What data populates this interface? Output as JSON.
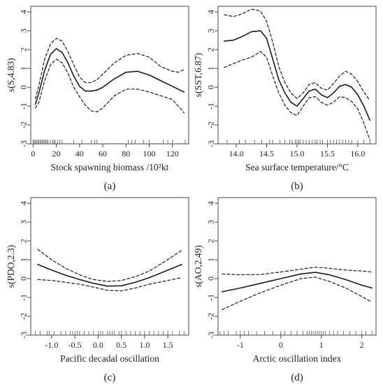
{
  "chart_data": [
    {
      "type": "line",
      "panel_label": "(a)",
      "xlabel": "Stock spawning biomass /10²kt",
      "ylabel": "s(S,4.83)",
      "xlim": [
        -2,
        134
      ],
      "ylim": [
        -3,
        4.3
      ],
      "xticks": [
        0,
        20,
        40,
        60,
        80,
        100,
        120
      ],
      "yticks": [
        -3,
        -2,
        -1,
        0,
        1,
        2,
        3,
        4
      ],
      "series": [
        {
          "role": "estimate",
          "style": "solid",
          "x": [
            2,
            5,
            10,
            15,
            20,
            25,
            30,
            35,
            40,
            45,
            50,
            55,
            60,
            70,
            80,
            90,
            100,
            110,
            120,
            130
          ],
          "y": [
            -0.9,
            -0.3,
            0.9,
            1.75,
            2.05,
            1.85,
            1.3,
            0.6,
            0.05,
            -0.2,
            -0.2,
            -0.15,
            0.0,
            0.45,
            0.8,
            0.85,
            0.65,
            0.35,
            0.05,
            -0.25
          ]
        },
        {
          "role": "upper",
          "style": "dashed",
          "x": [
            2,
            5,
            10,
            15,
            20,
            25,
            30,
            35,
            40,
            45,
            50,
            55,
            60,
            70,
            80,
            90,
            100,
            110,
            120,
            125,
            130
          ],
          "y": [
            -0.6,
            0.1,
            1.5,
            2.3,
            2.6,
            2.45,
            1.9,
            1.2,
            0.55,
            0.25,
            0.25,
            0.4,
            0.7,
            1.3,
            1.7,
            1.8,
            1.6,
            1.1,
            0.85,
            0.8,
            0.95
          ]
        },
        {
          "role": "lower",
          "style": "dashed",
          "x": [
            2,
            5,
            10,
            15,
            20,
            25,
            30,
            35,
            40,
            45,
            50,
            55,
            60,
            70,
            80,
            90,
            100,
            110,
            120,
            130
          ],
          "y": [
            -1.1,
            -0.8,
            0.35,
            1.2,
            1.5,
            1.3,
            0.75,
            0.0,
            -0.5,
            -0.95,
            -1.25,
            -1.3,
            -1.1,
            -0.45,
            -0.1,
            -0.1,
            -0.25,
            -0.45,
            -0.65,
            -1.35
          ]
        }
      ],
      "rug": [
        0,
        1,
        2,
        3,
        4,
        5,
        6,
        7,
        8,
        9,
        10,
        11,
        12,
        13,
        15,
        17,
        18,
        19,
        21,
        23,
        25,
        35,
        42,
        50,
        53,
        55,
        82,
        85,
        88,
        95,
        100,
        112,
        116,
        120,
        131
      ]
    },
    {
      "type": "line",
      "panel_label": "(b)",
      "xlabel": "Sea surface temperature/°C",
      "ylabel": "s(SST,6.87)",
      "xlim": [
        13.7,
        16.3
      ],
      "ylim": [
        -3,
        4.3
      ],
      "xticks": [
        14.0,
        14.5,
        15.0,
        15.5,
        16.0
      ],
      "xtick_labels": [
        "14.0",
        "14.5",
        "15.0",
        "15.5",
        "16.0"
      ],
      "yticks": [
        -3,
        -2,
        -1,
        0,
        1,
        2,
        3,
        4
      ],
      "series": [
        {
          "role": "estimate",
          "style": "solid",
          "x": [
            13.8,
            13.95,
            14.1,
            14.25,
            14.4,
            14.5,
            14.6,
            14.7,
            14.8,
            14.9,
            15.0,
            15.1,
            15.2,
            15.3,
            15.4,
            15.5,
            15.6,
            15.7,
            15.8,
            15.9,
            16.0,
            16.1,
            16.2
          ],
          "y": [
            2.45,
            2.5,
            2.7,
            2.95,
            3.0,
            2.6,
            1.5,
            0.4,
            -0.3,
            -0.8,
            -1.0,
            -0.6,
            -0.2,
            -0.1,
            -0.4,
            -0.55,
            -0.3,
            0.05,
            0.15,
            0.0,
            -0.4,
            -1.0,
            -1.75
          ]
        },
        {
          "role": "upper",
          "style": "dashed",
          "x": [
            13.8,
            13.95,
            14.1,
            14.25,
            14.4,
            14.5,
            14.6,
            14.7,
            14.8,
            14.9,
            15.0,
            15.1,
            15.2,
            15.3,
            15.4,
            15.5,
            15.6,
            15.7,
            15.8,
            15.9,
            16.0,
            16.1,
            16.2
          ],
          "y": [
            3.85,
            3.75,
            3.9,
            4.15,
            4.05,
            3.5,
            2.4,
            1.1,
            0.25,
            -0.3,
            -0.6,
            -0.3,
            0.15,
            0.25,
            -0.05,
            -0.15,
            0.2,
            0.6,
            0.85,
            0.7,
            0.3,
            -0.25,
            -0.7
          ]
        },
        {
          "role": "lower",
          "style": "dashed",
          "x": [
            13.8,
            13.95,
            14.1,
            14.25,
            14.4,
            14.5,
            14.6,
            14.7,
            14.8,
            14.9,
            15.0,
            15.1,
            15.2,
            15.3,
            15.4,
            15.5,
            15.6,
            15.7,
            15.8,
            15.9,
            16.0,
            16.1,
            16.2
          ],
          "y": [
            1.05,
            1.25,
            1.45,
            1.6,
            1.9,
            1.6,
            0.6,
            -0.3,
            -0.95,
            -1.35,
            -1.5,
            -1.0,
            -0.55,
            -0.5,
            -0.8,
            -0.95,
            -0.8,
            -0.5,
            -0.55,
            -0.75,
            -1.15,
            -1.9,
            -2.8
          ]
        }
      ],
      "rug": [
        13.85,
        14.05,
        14.15,
        14.3,
        14.42,
        14.55,
        14.6,
        14.72,
        14.8,
        14.88,
        14.92,
        14.97,
        15.0,
        15.03,
        15.05,
        15.1,
        15.15,
        15.2,
        15.25,
        15.3,
        15.33,
        15.38,
        15.42,
        15.5,
        15.55,
        15.6,
        15.65,
        15.7,
        15.75,
        15.8,
        15.85,
        15.9,
        16.0,
        16.1,
        16.2
      ]
    },
    {
      "type": "line",
      "panel_label": "(c)",
      "xlabel": "Pacific decadal oscillation",
      "ylabel": "s(PDO,2.3)",
      "xlim": [
        -1.45,
        1.95
      ],
      "ylim": [
        -3,
        4.3
      ],
      "xticks": [
        -1.0,
        -0.5,
        0.0,
        0.5,
        1.0,
        1.5
      ],
      "xtick_labels": [
        "-1.0",
        "-0.5",
        "0.0",
        "0.5",
        "1.0",
        "1.5"
      ],
      "yticks": [
        -3,
        -2,
        -1,
        0,
        1,
        2,
        3,
        4
      ],
      "series": [
        {
          "role": "estimate",
          "style": "solid",
          "x": [
            -1.3,
            -1.0,
            -0.7,
            -0.4,
            -0.1,
            0.2,
            0.5,
            0.8,
            1.1,
            1.4,
            1.8
          ],
          "y": [
            0.75,
            0.45,
            0.18,
            -0.05,
            -0.25,
            -0.4,
            -0.38,
            -0.2,
            0.05,
            0.35,
            0.75
          ]
        },
        {
          "role": "upper",
          "style": "dashed",
          "x": [
            -1.3,
            -1.0,
            -0.7,
            -0.4,
            -0.1,
            0.2,
            0.5,
            0.8,
            1.1,
            1.4,
            1.8
          ],
          "y": [
            1.55,
            1.0,
            0.55,
            0.2,
            -0.05,
            -0.15,
            -0.1,
            0.1,
            0.4,
            0.85,
            1.5
          ]
        },
        {
          "role": "lower",
          "style": "dashed",
          "x": [
            -1.3,
            -1.0,
            -0.7,
            -0.4,
            -0.1,
            0.2,
            0.5,
            0.8,
            1.1,
            1.4,
            1.8
          ],
          "y": [
            -0.05,
            -0.1,
            -0.2,
            -0.3,
            -0.45,
            -0.62,
            -0.65,
            -0.5,
            -0.3,
            -0.15,
            0.05
          ]
        }
      ],
      "rug": [
        -1.35,
        -1.25,
        -1.1,
        -1.05,
        -0.95,
        -0.8,
        -0.7,
        -0.6,
        -0.55,
        -0.5,
        -0.45,
        -0.4,
        -0.3,
        -0.2,
        -0.1,
        0.0,
        0.05,
        0.1,
        0.2,
        0.25,
        0.3,
        0.35,
        0.45,
        0.5,
        0.6,
        0.7,
        0.8,
        0.9,
        1.0,
        1.1,
        1.2,
        1.3,
        1.4,
        1.5,
        1.6,
        1.75,
        1.85
      ]
    },
    {
      "type": "line",
      "panel_label": "(d)",
      "xlabel": "Arctic oscillation index",
      "ylabel": "s(AO,2.49)",
      "xlim": [
        -1.55,
        2.35
      ],
      "ylim": [
        -3,
        4.3
      ],
      "xticks": [
        -1,
        0,
        1,
        2
      ],
      "xtick_labels": [
        "-1",
        "0",
        "1",
        "2"
      ],
      "yticks": [
        -3,
        -2,
        -1,
        0,
        1,
        2,
        3,
        4
      ],
      "series": [
        {
          "role": "estimate",
          "style": "solid",
          "x": [
            -1.45,
            -1.0,
            -0.5,
            0.0,
            0.5,
            0.85,
            1.2,
            1.6,
            2.0,
            2.25
          ],
          "y": [
            -0.7,
            -0.5,
            -0.25,
            0.0,
            0.25,
            0.33,
            0.2,
            -0.05,
            -0.35,
            -0.5
          ]
        },
        {
          "role": "upper",
          "style": "dashed",
          "x": [
            -1.45,
            -1.0,
            -0.5,
            0.0,
            0.5,
            0.85,
            1.2,
            1.6,
            2.0,
            2.25
          ],
          "y": [
            0.25,
            0.2,
            0.22,
            0.35,
            0.5,
            0.6,
            0.55,
            0.45,
            0.4,
            0.35
          ]
        },
        {
          "role": "lower",
          "style": "dashed",
          "x": [
            -1.45,
            -1.0,
            -0.5,
            0.0,
            0.5,
            0.85,
            1.2,
            1.6,
            2.0,
            2.25
          ],
          "y": [
            -1.65,
            -1.2,
            -0.75,
            -0.35,
            0.0,
            0.08,
            -0.15,
            -0.5,
            -0.95,
            -1.25
          ]
        }
      ],
      "rug": [
        -1.5,
        -1.4,
        -1.3,
        -1.1,
        -1.0,
        -0.9,
        -0.8,
        -0.6,
        -0.4,
        -0.2,
        0.0,
        0.1,
        0.25,
        0.4,
        0.55,
        0.65,
        0.7,
        0.75,
        0.8,
        0.85,
        0.9,
        0.95,
        1.0,
        1.05,
        1.1,
        1.2,
        1.3,
        1.4,
        1.55,
        1.7,
        1.85,
        2.0,
        2.1,
        2.25
      ]
    }
  ]
}
